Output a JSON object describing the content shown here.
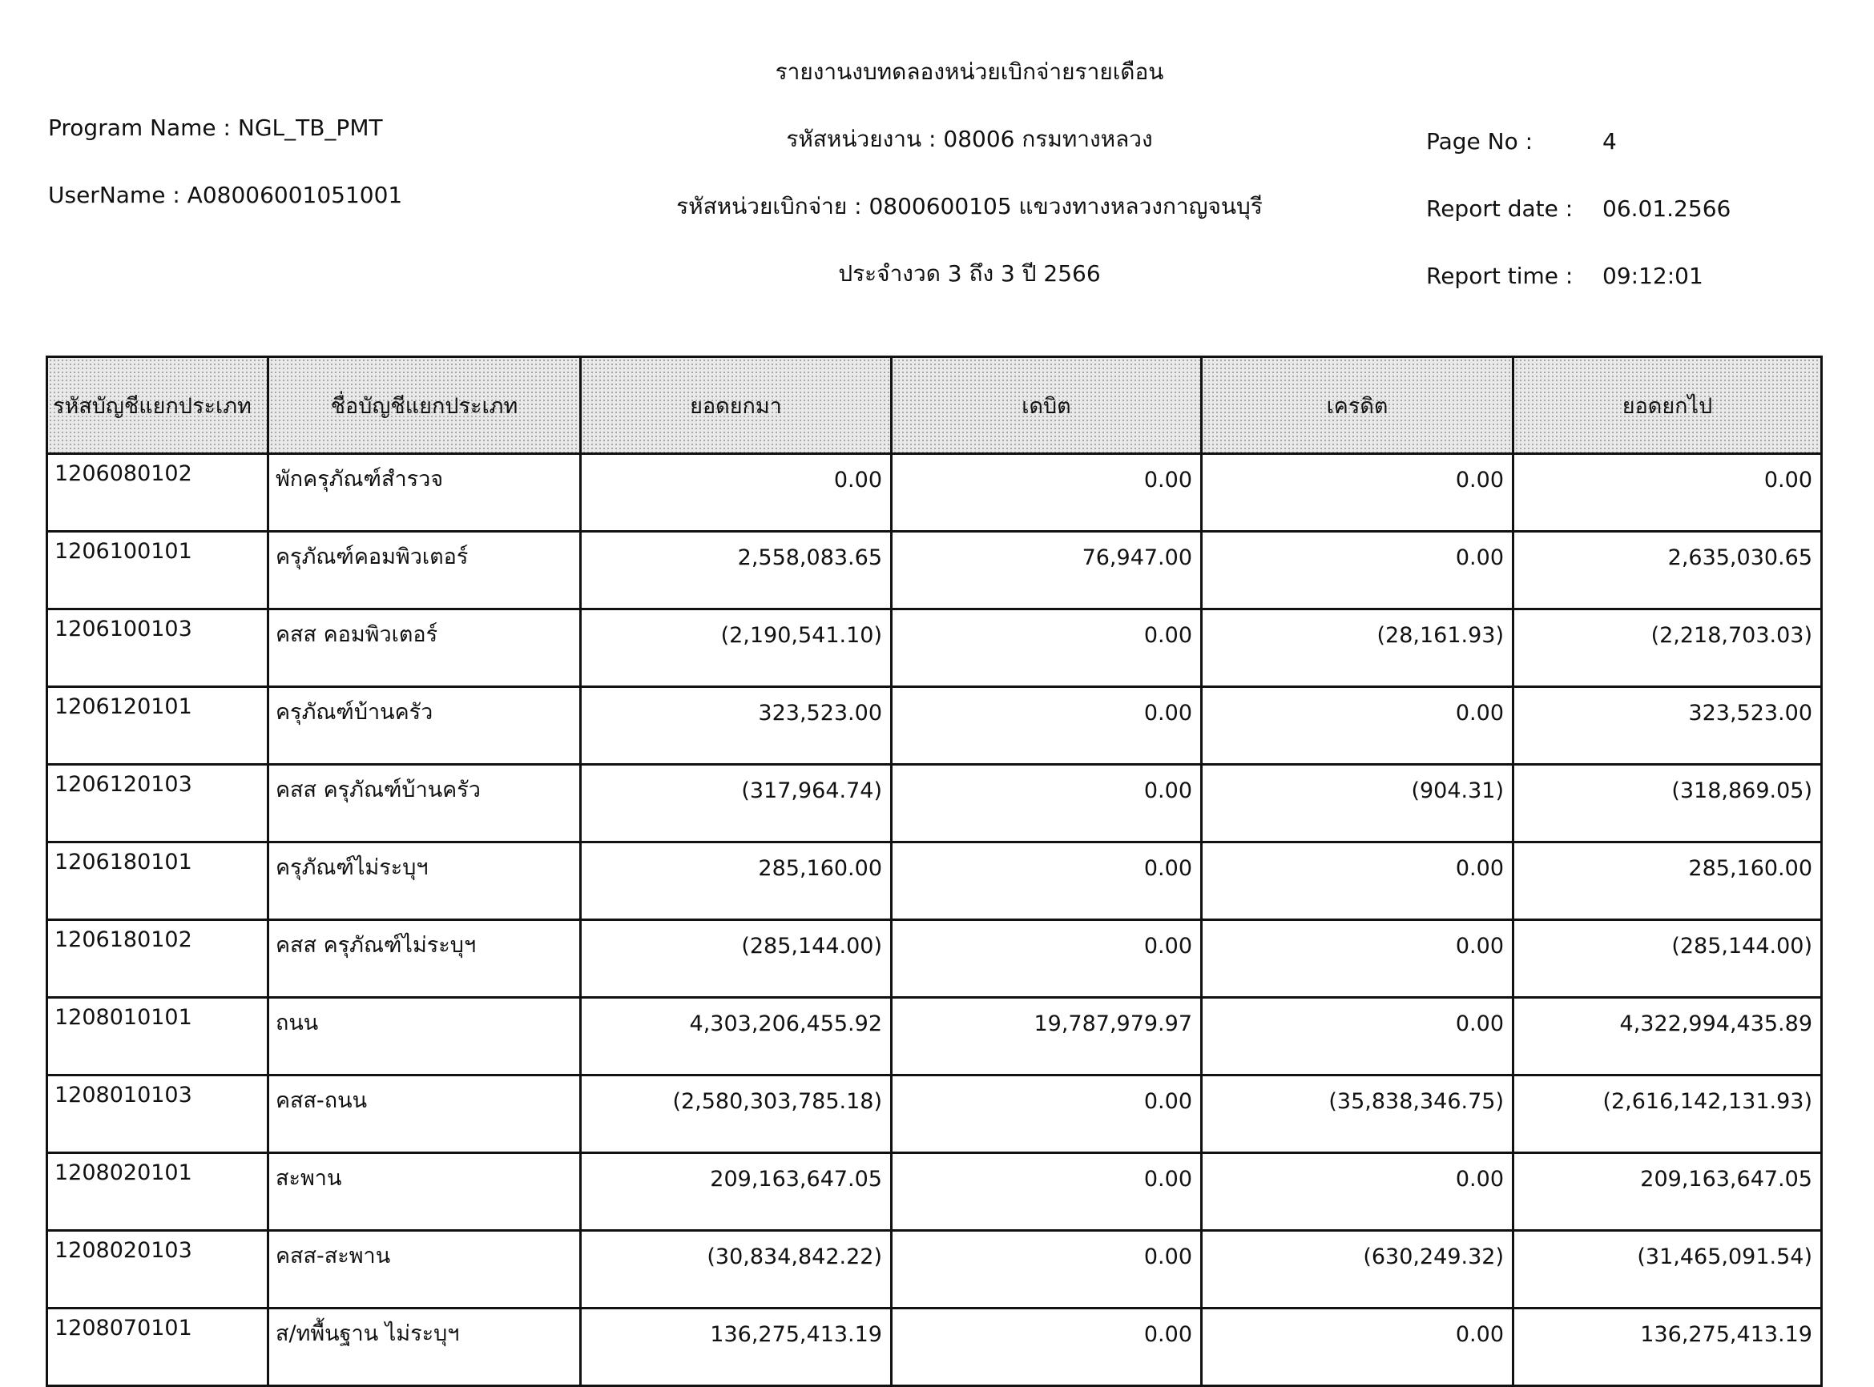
{
  "header": {
    "title": "รายงานงบทดลองหน่วยเบิกจ่ายรายเดือน",
    "agency": "รหัสหน่วยงาน : 08006 กรมทางหลวง",
    "disbursing_unit": "รหัสหน่วยเบิกจ่าย : 0800600105 แขวงทางหลวงกาญจนบุรี",
    "period": "ประจำงวด 3 ถึง 3 ปี 2566",
    "program_name": "Program Name : NGL_TB_PMT",
    "username": "UserName : A08006001051001",
    "page_no_label": "Page No :",
    "page_no": "4",
    "report_date_label": "Report date :",
    "report_date": "06.01.2566",
    "report_time_label": "Report time :",
    "report_time": "09:12:01"
  },
  "table": {
    "columns": [
      "รหัสบัญชีแยกประเภท",
      "ชื่อบัญชีแยกประเภท",
      "ยอดยกมา",
      "เดบิต",
      "เครดิต",
      "ยอดยกไป"
    ],
    "rows": [
      [
        "1206080102",
        "พักครุภัณฑ์สำรวจ",
        "0.00",
        "0.00",
        "0.00",
        "0.00"
      ],
      [
        "1206100101",
        "ครุภัณฑ์คอมพิวเตอร์",
        "2,558,083.65",
        "76,947.00",
        "0.00",
        "2,635,030.65"
      ],
      [
        "1206100103",
        "คสส คอมพิวเตอร์",
        "(2,190,541.10)",
        "0.00",
        "(28,161.93)",
        "(2,218,703.03)"
      ],
      [
        "1206120101",
        "ครุภัณฑ์บ้านครัว",
        "323,523.00",
        "0.00",
        "0.00",
        "323,523.00"
      ],
      [
        "1206120103",
        "คสส ครุภัณฑ์บ้านครัว",
        "(317,964.74)",
        "0.00",
        "(904.31)",
        "(318,869.05)"
      ],
      [
        "1206180101",
        "ครุภัณฑ์ไม่ระบุฯ",
        "285,160.00",
        "0.00",
        "0.00",
        "285,160.00"
      ],
      [
        "1206180102",
        "คสส ครุภัณฑ์ไม่ระบุฯ",
        "(285,144.00)",
        "0.00",
        "0.00",
        "(285,144.00)"
      ],
      [
        "1208010101",
        "ถนน",
        "4,303,206,455.92",
        "19,787,979.97",
        "0.00",
        "4,322,994,435.89"
      ],
      [
        "1208010103",
        "คสส-ถนน",
        "(2,580,303,785.18)",
        "0.00",
        "(35,838,346.75)",
        "(2,616,142,131.93)"
      ],
      [
        "1208020101",
        "สะพาน",
        "209,163,647.05",
        "0.00",
        "0.00",
        "209,163,647.05"
      ],
      [
        "1208020103",
        "คสส-สะพาน",
        "(30,834,842.22)",
        "0.00",
        "(630,249.32)",
        "(31,465,091.54)"
      ],
      [
        "1208070101",
        "ส/ทพื้นฐาน ไม่ระบุฯ",
        "136,275,413.19",
        "0.00",
        "0.00",
        "136,275,413.19"
      ]
    ]
  }
}
